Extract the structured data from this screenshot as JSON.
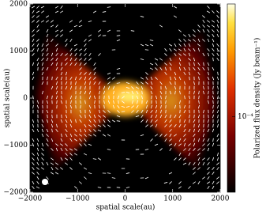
{
  "chart_data": {
    "type": "image",
    "xlabel": "spatial scale(au)",
    "ylabel": "spatial scale(au)",
    "xlim": [
      -2000,
      2000
    ],
    "ylim": [
      -2000,
      2000
    ],
    "xticks": [
      {
        "value": -2000,
        "label": "−2000"
      },
      {
        "value": -1000,
        "label": "−1000"
      },
      0,
      1000,
      2000
    ],
    "yticks": [
      {
        "value": -2000,
        "label": "−2000"
      },
      {
        "value": -1000,
        "label": "−1000"
      },
      0,
      1000,
      2000
    ],
    "colorbar": {
      "label": "Polarized flux density (Jy beam⁻¹)",
      "log": true,
      "lim": [
        3e-05,
        0.0006
      ],
      "ticks": [
        {
          "value": 0.0001,
          "label": "10⁻⁴"
        }
      ]
    }
  }
}
